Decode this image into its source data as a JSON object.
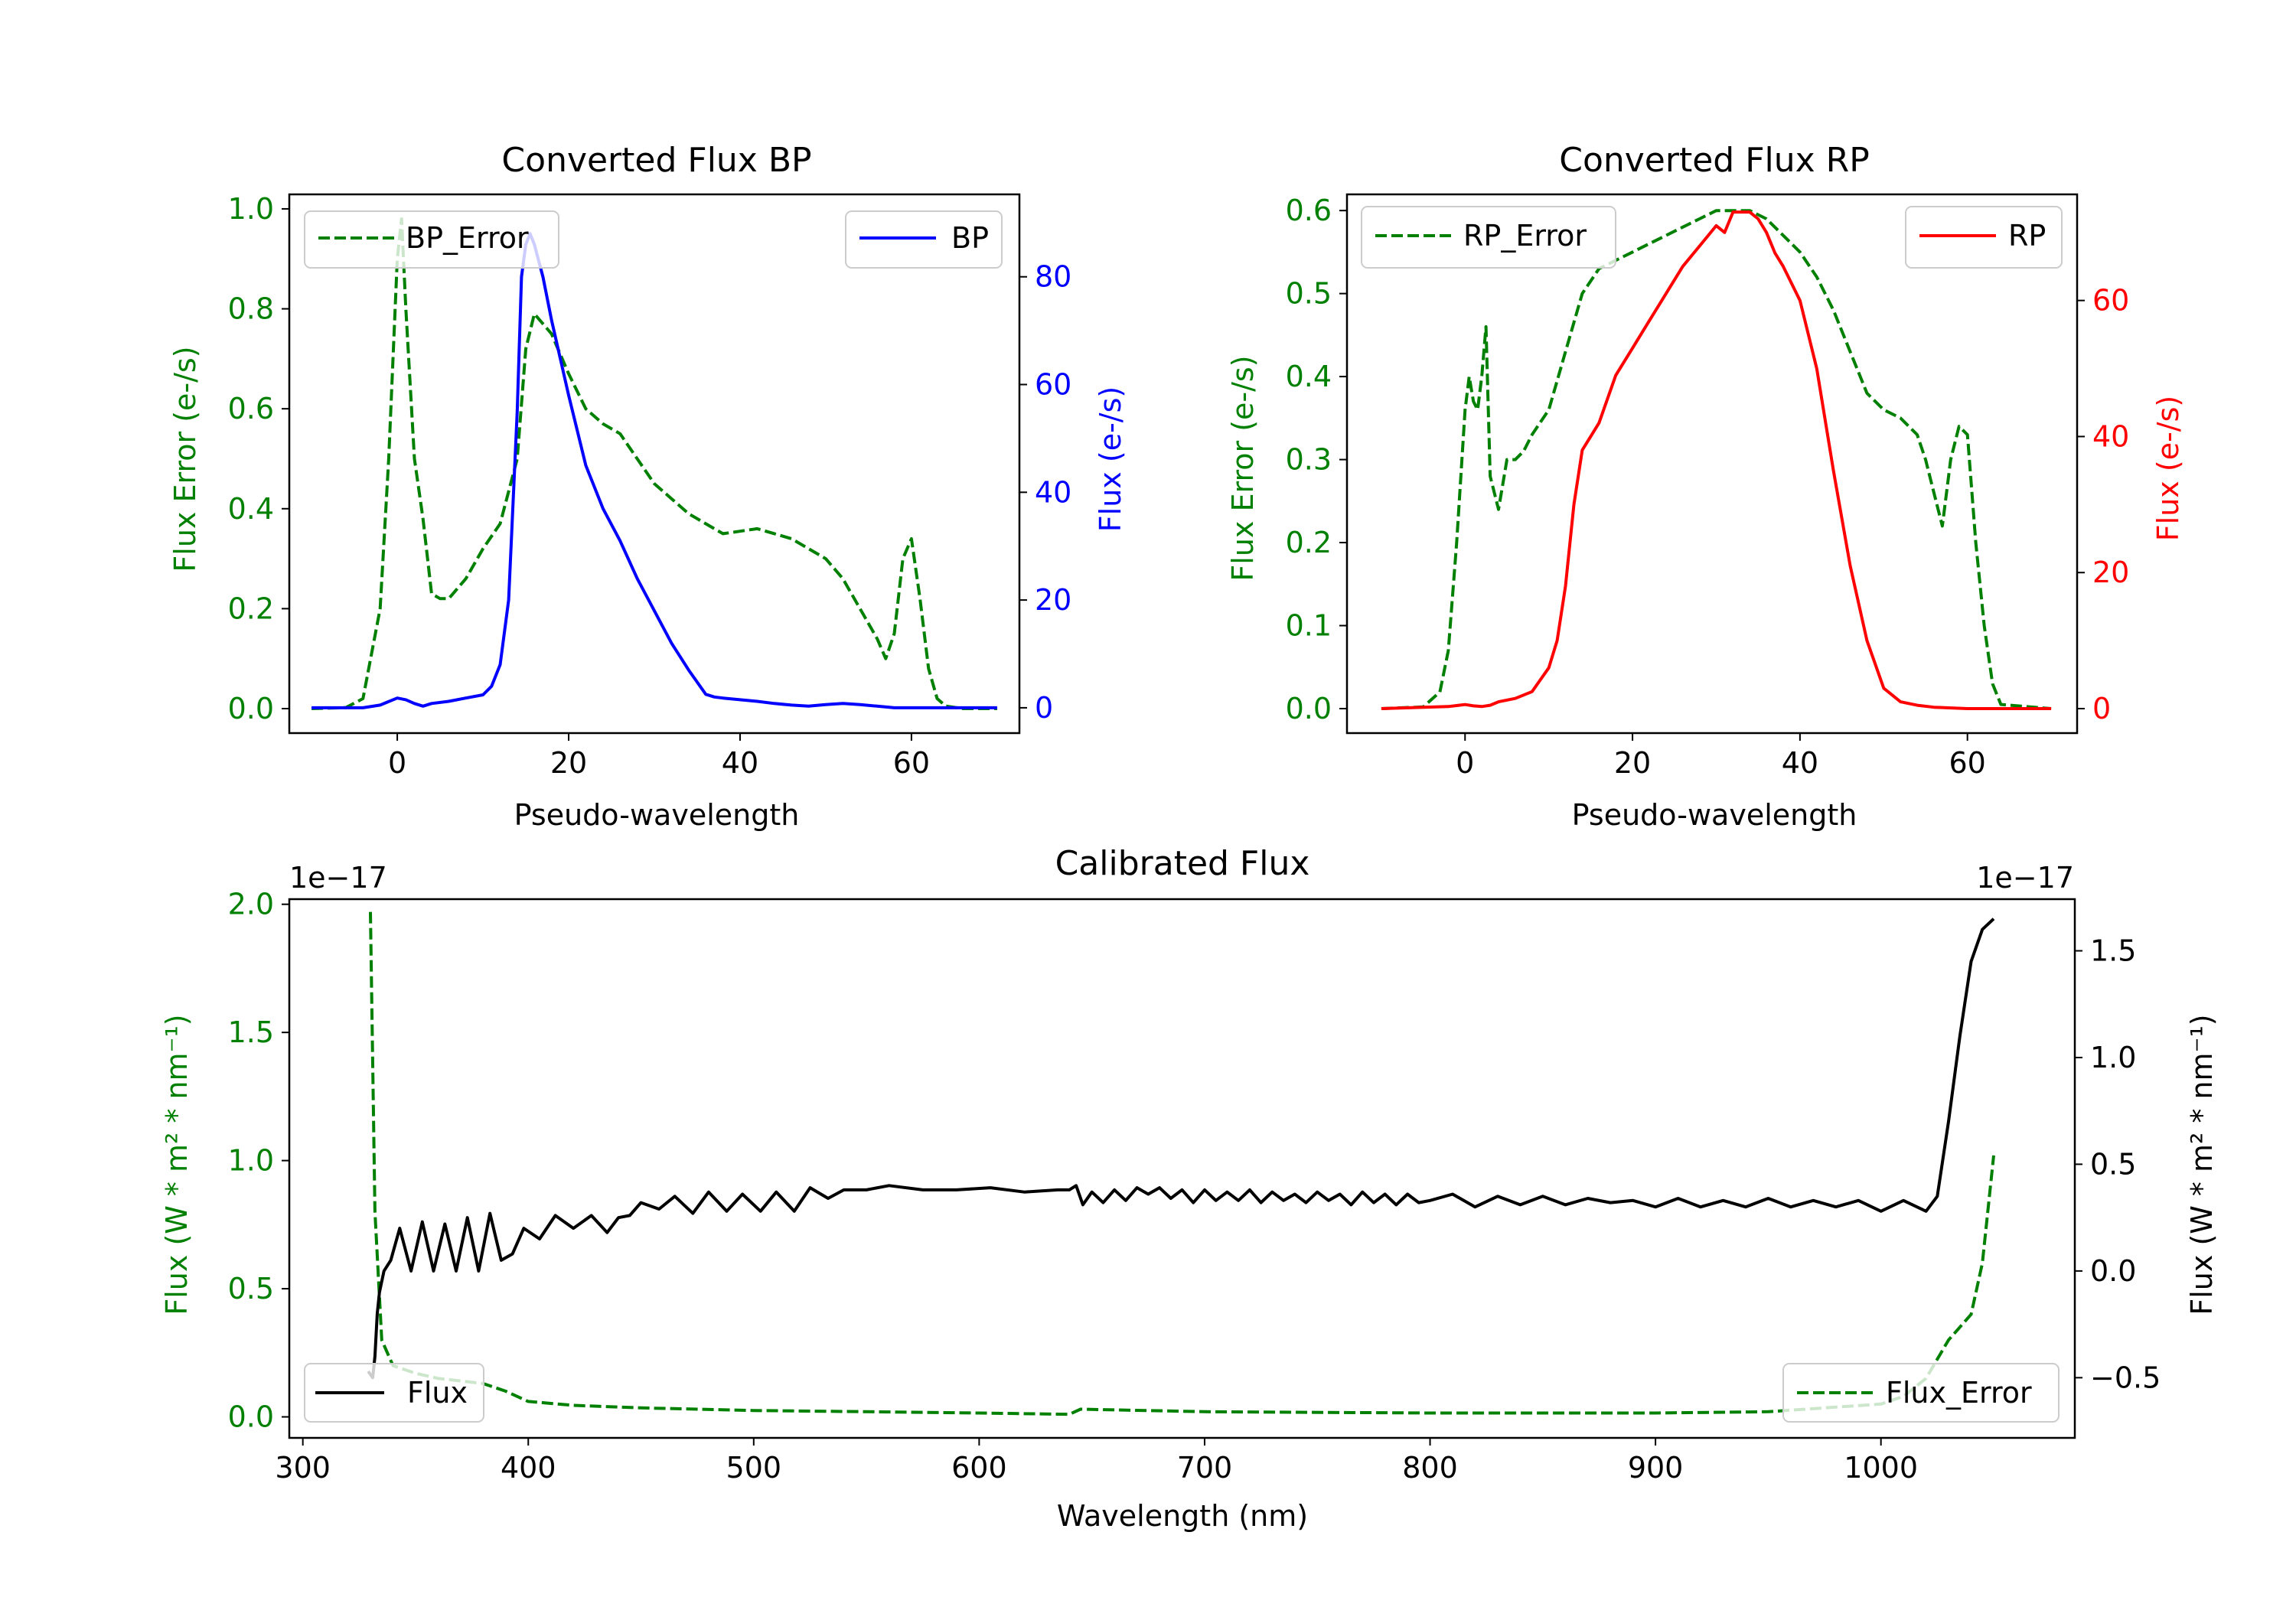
{
  "colors": {
    "bp": "#0000ff",
    "rp": "#ff0000",
    "error": "#008000",
    "flux": "#000000",
    "axis": "#000000",
    "background": "#ffffff"
  },
  "chart_data": [
    {
      "id": "bp",
      "type": "line",
      "title": "Converted Flux BP",
      "xlabel": "Pseudo-wavelength",
      "ylabel_left": "Flux Error (e-/s)",
      "ylabel_right": "Flux (e-/s)",
      "xlim": [
        -12.6,
        72.6
      ],
      "ylim_left": [
        -0.049,
        1.029
      ],
      "ylim_right": [
        -4.7,
        95.3
      ],
      "xticks": [
        0,
        20,
        40,
        60
      ],
      "yticks_left": [
        0.0,
        0.2,
        0.4,
        0.6,
        0.8,
        1.0
      ],
      "yticks_right": [
        0,
        20,
        40,
        60,
        80
      ],
      "legend_left": {
        "label": "BP_Error",
        "placement": "upper left"
      },
      "legend_right": {
        "label": "BP",
        "placement": "upper right"
      },
      "series": [
        {
          "name": "BP_Error",
          "axis": "left",
          "style": "dashed",
          "color": "#008000",
          "x": [
            -10,
            -6,
            -4,
            -2,
            -1,
            0,
            0.5,
            1,
            2,
            3,
            4,
            5,
            6,
            8,
            10,
            12,
            14,
            15,
            16,
            18,
            20,
            22,
            24,
            26,
            28,
            30,
            32,
            34,
            36,
            38,
            40,
            42,
            44,
            46,
            48,
            50,
            52,
            54,
            56,
            57,
            58,
            59,
            60,
            61,
            62,
            63,
            64,
            66,
            70
          ],
          "values": [
            0.0,
            0.002,
            0.02,
            0.2,
            0.5,
            0.9,
            0.98,
            0.8,
            0.5,
            0.38,
            0.23,
            0.22,
            0.22,
            0.26,
            0.32,
            0.37,
            0.5,
            0.72,
            0.79,
            0.75,
            0.67,
            0.6,
            0.57,
            0.55,
            0.5,
            0.45,
            0.42,
            0.39,
            0.37,
            0.35,
            0.355,
            0.36,
            0.35,
            0.34,
            0.32,
            0.3,
            0.26,
            0.2,
            0.14,
            0.1,
            0.15,
            0.3,
            0.34,
            0.22,
            0.08,
            0.02,
            0.005,
            0.0,
            0.0
          ]
        },
        {
          "name": "BP",
          "axis": "right",
          "style": "solid",
          "color": "#0000ff",
          "x": [
            -10,
            -4,
            -2,
            0,
            1,
            2,
            3,
            4,
            6,
            8,
            10,
            11,
            12,
            13,
            14,
            14.5,
            15,
            15.5,
            16,
            17,
            18,
            19,
            20,
            22,
            24,
            26,
            28,
            30,
            32,
            34,
            36,
            37,
            38,
            40,
            42,
            44,
            46,
            48,
            50,
            52,
            54,
            56,
            58,
            60,
            62,
            70
          ],
          "values": [
            0,
            0,
            0.5,
            1.8,
            1.5,
            0.8,
            0.3,
            0.8,
            1.2,
            1.8,
            2.4,
            4,
            8,
            20,
            55,
            80,
            86,
            88,
            86,
            80,
            72,
            65,
            58,
            45,
            37,
            31,
            24,
            18,
            12,
            7,
            2.5,
            2,
            1.8,
            1.5,
            1.2,
            0.8,
            0.5,
            0.3,
            0.6,
            0.8,
            0.6,
            0.3,
            0,
            0,
            0,
            0
          ]
        }
      ]
    },
    {
      "id": "rp",
      "type": "line",
      "title": "Converted Flux RP",
      "xlabel": "Pseudo-wavelength",
      "ylabel_left": "Flux Error (e-/s)",
      "ylabel_right": "Flux (e-/s)",
      "xlim": [
        -14.1,
        73.1
      ],
      "ylim_left": [
        -0.0295,
        0.6195
      ],
      "ylim_right": [
        -3.6,
        75.6
      ],
      "xticks": [
        0,
        20,
        40,
        60
      ],
      "yticks_left": [
        0.0,
        0.1,
        0.2,
        0.3,
        0.4,
        0.5,
        0.6
      ],
      "yticks_right": [
        0,
        20,
        40,
        60
      ],
      "legend_left": {
        "label": "RP_Error",
        "placement": "upper left"
      },
      "legend_right": {
        "label": "RP",
        "placement": "upper right"
      },
      "series": [
        {
          "name": "RP_Error",
          "axis": "left",
          "style": "dashed",
          "color": "#008000",
          "x": [
            -10,
            -5,
            -3,
            -2,
            -1,
            0,
            0.5,
            1,
            1.5,
            2,
            2.5,
            3,
            4,
            5,
            6,
            7,
            8,
            10,
            12,
            14,
            16,
            18,
            20,
            22,
            24,
            26,
            28,
            30,
            32,
            34,
            36,
            38,
            40,
            42,
            44,
            46,
            48,
            50,
            52,
            54,
            55,
            56,
            57,
            58,
            59,
            60,
            61,
            62,
            63,
            64,
            70
          ],
          "values": [
            0.0,
            0.002,
            0.02,
            0.07,
            0.2,
            0.36,
            0.4,
            0.37,
            0.36,
            0.4,
            0.46,
            0.28,
            0.24,
            0.3,
            0.3,
            0.31,
            0.33,
            0.36,
            0.43,
            0.5,
            0.53,
            0.54,
            0.55,
            0.56,
            0.57,
            0.58,
            0.59,
            0.6,
            0.6,
            0.6,
            0.59,
            0.57,
            0.55,
            0.52,
            0.48,
            0.43,
            0.38,
            0.36,
            0.35,
            0.33,
            0.3,
            0.26,
            0.22,
            0.3,
            0.34,
            0.33,
            0.2,
            0.1,
            0.03,
            0.005,
            0.0
          ]
        },
        {
          "name": "RP",
          "axis": "right",
          "style": "solid",
          "color": "#ff0000",
          "x": [
            -10,
            -2,
            0,
            1,
            2,
            3,
            4,
            6,
            8,
            10,
            11,
            12,
            13,
            14,
            15,
            16,
            18,
            20,
            22,
            24,
            26,
            28,
            30,
            31,
            32,
            33,
            34,
            35,
            36,
            37,
            38,
            40,
            42,
            44,
            46,
            48,
            50,
            52,
            54,
            56,
            60,
            70
          ],
          "values": [
            0,
            0.3,
            0.6,
            0.4,
            0.3,
            0.5,
            1,
            1.5,
            2.5,
            6,
            10,
            18,
            30,
            38,
            40,
            42,
            49,
            53,
            57,
            61,
            65,
            68,
            71,
            70,
            73,
            73,
            73,
            72,
            70,
            67,
            65,
            60,
            50,
            35,
            21,
            10,
            3,
            1,
            0.5,
            0.2,
            0,
            0
          ]
        }
      ]
    },
    {
      "id": "calibrated",
      "type": "line",
      "title": "Calibrated Flux",
      "xlabel": "Wavelength (nm)",
      "ylabel_left": "Flux (W * m² * nm⁻¹)",
      "ylabel_right": "Flux (W * m² * nm⁻¹)",
      "offset_left": "1e−17",
      "offset_right": "1e−17",
      "xlim": [
        294,
        1086
      ],
      "ylim_left": [
        -0.082,
        2.02
      ],
      "ylim_right": [
        -0.782,
        1.742
      ],
      "xticks": [
        300,
        400,
        500,
        600,
        700,
        800,
        900,
        1000
      ],
      "yticks_left": [
        0.0,
        0.5,
        1.0,
        1.5,
        2.0
      ],
      "yticks_right": [
        -0.5,
        0.0,
        0.5,
        1.0,
        1.5
      ],
      "legend_left": {
        "label": "Flux",
        "placement": "lower left"
      },
      "legend_right": {
        "label": "Flux_Error",
        "placement": "lower right"
      },
      "series": [
        {
          "name": "Flux_Error",
          "axis": "left",
          "style": "dashed",
          "color": "#008000",
          "x": [
            330,
            332,
            335,
            340,
            350,
            360,
            370,
            380,
            390,
            400,
            420,
            450,
            500,
            550,
            600,
            640,
            645,
            700,
            800,
            900,
            950,
            1000,
            1010,
            1020,
            1030,
            1040,
            1045,
            1050
          ],
          "values": [
            1.97,
            0.8,
            0.3,
            0.2,
            0.17,
            0.15,
            0.14,
            0.13,
            0.1,
            0.06,
            0.045,
            0.035,
            0.025,
            0.02,
            0.015,
            0.01,
            0.03,
            0.02,
            0.015,
            0.015,
            0.02,
            0.05,
            0.08,
            0.15,
            0.3,
            0.4,
            0.6,
            1.02
          ]
        },
        {
          "name": "Flux",
          "axis": "right",
          "style": "solid",
          "color": "#000000",
          "x": [
            329,
            331,
            332,
            333,
            334,
            336,
            339,
            343,
            348,
            353,
            358,
            363,
            368,
            373,
            378,
            383,
            388,
            393,
            398,
            405,
            412,
            420,
            428,
            435,
            440,
            445,
            450,
            458,
            465,
            473,
            480,
            488,
            495,
            503,
            510,
            518,
            525,
            533,
            540,
            550,
            560,
            575,
            590,
            605,
            620,
            635,
            640,
            643,
            646,
            650,
            655,
            660,
            665,
            670,
            675,
            680,
            685,
            690,
            695,
            700,
            705,
            710,
            715,
            720,
            725,
            730,
            735,
            740,
            745,
            750,
            755,
            760,
            765,
            770,
            775,
            780,
            785,
            790,
            795,
            800,
            810,
            820,
            830,
            840,
            850,
            860,
            870,
            880,
            890,
            900,
            910,
            920,
            930,
            940,
            950,
            960,
            970,
            980,
            990,
            1000,
            1010,
            1020,
            1025,
            1030,
            1035,
            1040,
            1045,
            1050
          ],
          "values": [
            -0.47,
            -0.5,
            -0.4,
            -0.2,
            -0.1,
            0.0,
            0.05,
            0.2,
            0.0,
            0.23,
            0.0,
            0.22,
            0.0,
            0.25,
            0.0,
            0.27,
            0.05,
            0.08,
            0.2,
            0.15,
            0.26,
            0.2,
            0.26,
            0.18,
            0.25,
            0.26,
            0.32,
            0.29,
            0.35,
            0.27,
            0.37,
            0.28,
            0.36,
            0.28,
            0.37,
            0.28,
            0.39,
            0.34,
            0.38,
            0.38,
            0.4,
            0.38,
            0.38,
            0.39,
            0.37,
            0.38,
            0.38,
            0.4,
            0.31,
            0.37,
            0.32,
            0.38,
            0.33,
            0.39,
            0.36,
            0.39,
            0.34,
            0.38,
            0.32,
            0.38,
            0.33,
            0.37,
            0.33,
            0.38,
            0.32,
            0.37,
            0.33,
            0.36,
            0.32,
            0.37,
            0.33,
            0.36,
            0.31,
            0.37,
            0.32,
            0.36,
            0.31,
            0.36,
            0.32,
            0.33,
            0.36,
            0.3,
            0.35,
            0.31,
            0.35,
            0.31,
            0.34,
            0.32,
            0.33,
            0.3,
            0.34,
            0.3,
            0.33,
            0.3,
            0.34,
            0.3,
            0.33,
            0.3,
            0.33,
            0.28,
            0.33,
            0.28,
            0.35,
            0.7,
            1.1,
            1.45,
            1.6,
            1.65
          ]
        }
      ]
    }
  ]
}
